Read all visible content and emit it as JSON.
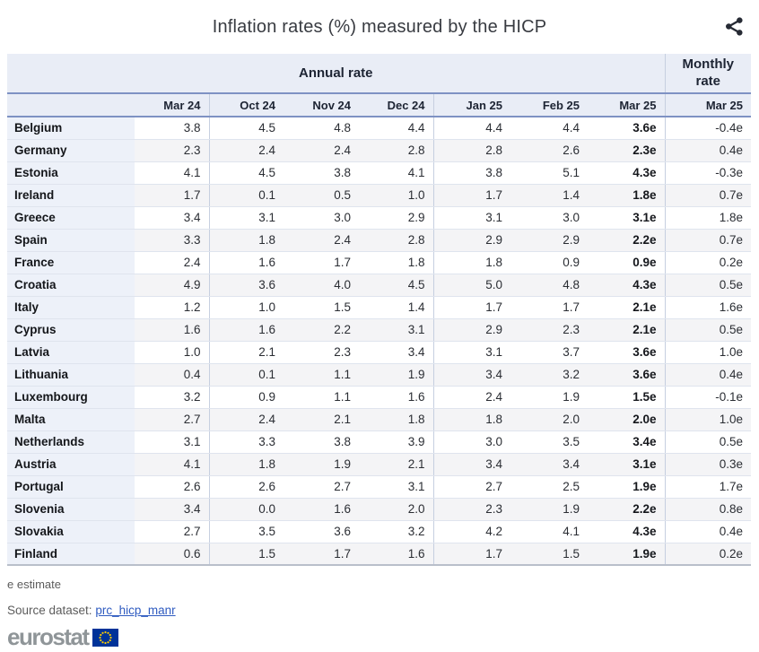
{
  "title": "Inflation rates (%) measured by the HICP",
  "icons": {
    "share": "share-nodes",
    "eu_flag": "eu-flag-with-stars"
  },
  "chart_data": {
    "type": "table",
    "title": "Inflation rates (%) measured by the HICP",
    "column_groups": [
      {
        "label": "Annual rate",
        "columns": 7
      },
      {
        "label": "Monthly rate",
        "columns": 1
      }
    ],
    "columns": [
      "Mar 24",
      "Oct 24",
      "Nov 24",
      "Dec 24",
      "Jan 25",
      "Feb 25",
      "Mar 25",
      "Mar 25"
    ],
    "rows": [
      {
        "country": "Belgium",
        "values": [
          "3.8",
          "4.5",
          "4.8",
          "4.4",
          "4.4",
          "4.4",
          "3.6e",
          "-0.4e"
        ]
      },
      {
        "country": "Germany",
        "values": [
          "2.3",
          "2.4",
          "2.4",
          "2.8",
          "2.8",
          "2.6",
          "2.3e",
          "0.4e"
        ]
      },
      {
        "country": "Estonia",
        "values": [
          "4.1",
          "4.5",
          "3.8",
          "4.1",
          "3.8",
          "5.1",
          "4.3e",
          "-0.3e"
        ]
      },
      {
        "country": "Ireland",
        "values": [
          "1.7",
          "0.1",
          "0.5",
          "1.0",
          "1.7",
          "1.4",
          "1.8e",
          "0.7e"
        ]
      },
      {
        "country": "Greece",
        "values": [
          "3.4",
          "3.1",
          "3.0",
          "2.9",
          "3.1",
          "3.0",
          "3.1e",
          "1.8e"
        ]
      },
      {
        "country": "Spain",
        "values": [
          "3.3",
          "1.8",
          "2.4",
          "2.8",
          "2.9",
          "2.9",
          "2.2e",
          "0.7e"
        ]
      },
      {
        "country": "France",
        "values": [
          "2.4",
          "1.6",
          "1.7",
          "1.8",
          "1.8",
          "0.9",
          "0.9e",
          "0.2e"
        ]
      },
      {
        "country": "Croatia",
        "values": [
          "4.9",
          "3.6",
          "4.0",
          "4.5",
          "5.0",
          "4.8",
          "4.3e",
          "0.5e"
        ]
      },
      {
        "country": "Italy",
        "values": [
          "1.2",
          "1.0",
          "1.5",
          "1.4",
          "1.7",
          "1.7",
          "2.1e",
          "1.6e"
        ]
      },
      {
        "country": "Cyprus",
        "values": [
          "1.6",
          "1.6",
          "2.2",
          "3.1",
          "2.9",
          "2.3",
          "2.1e",
          "0.5e"
        ]
      },
      {
        "country": "Latvia",
        "values": [
          "1.0",
          "2.1",
          "2.3",
          "3.4",
          "3.1",
          "3.7",
          "3.6e",
          "1.0e"
        ]
      },
      {
        "country": "Lithuania",
        "values": [
          "0.4",
          "0.1",
          "1.1",
          "1.9",
          "3.4",
          "3.2",
          "3.6e",
          "0.4e"
        ]
      },
      {
        "country": "Luxembourg",
        "values": [
          "3.2",
          "0.9",
          "1.1",
          "1.6",
          "2.4",
          "1.9",
          "1.5e",
          "-0.1e"
        ]
      },
      {
        "country": "Malta",
        "values": [
          "2.7",
          "2.4",
          "2.1",
          "1.8",
          "1.8",
          "2.0",
          "2.0e",
          "1.0e"
        ]
      },
      {
        "country": "Netherlands",
        "values": [
          "3.1",
          "3.3",
          "3.8",
          "3.9",
          "3.0",
          "3.5",
          "3.4e",
          "0.5e"
        ]
      },
      {
        "country": "Austria",
        "values": [
          "4.1",
          "1.8",
          "1.9",
          "2.1",
          "3.4",
          "3.4",
          "3.1e",
          "0.3e"
        ]
      },
      {
        "country": "Portugal",
        "values": [
          "2.6",
          "2.6",
          "2.7",
          "3.1",
          "2.7",
          "2.5",
          "1.9e",
          "1.7e"
        ]
      },
      {
        "country": "Slovenia",
        "values": [
          "3.4",
          "0.0",
          "1.6",
          "2.0",
          "2.3",
          "1.9",
          "2.2e",
          "0.8e"
        ]
      },
      {
        "country": "Slovakia",
        "values": [
          "2.7",
          "3.5",
          "3.6",
          "3.2",
          "4.2",
          "4.1",
          "4.3e",
          "0.4e"
        ]
      },
      {
        "country": "Finland",
        "values": [
          "0.6",
          "1.5",
          "1.7",
          "1.6",
          "1.7",
          "1.5",
          "1.9e",
          "0.2e"
        ]
      }
    ]
  },
  "footnotes": {
    "estimate": "e estimate",
    "source_label": "Source dataset:",
    "source_link": "prc_hicp_manr"
  },
  "logo": {
    "text": "eurostat"
  },
  "colors": {
    "header_bg": "#e9edf6",
    "header_border_blue": "#7e92c3",
    "row_header_bg": "#edf1f9",
    "stripe_bg": "#f4f4f6",
    "column_separator": "#c6cfe0",
    "table_bottom_border": "#b9bfca",
    "link": "#2f5bc0",
    "eu_flag_blue": "#003399",
    "eu_flag_stars": "#ffcc00",
    "logo_text": "#8f9598"
  }
}
